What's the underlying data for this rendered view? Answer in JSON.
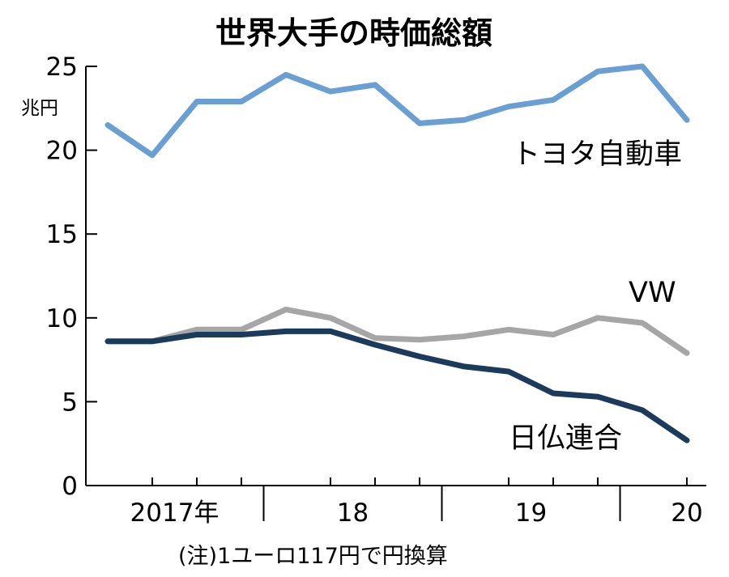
{
  "chart_data": {
    "type": "line",
    "title": "世界大手の時価総額",
    "unit_label": "兆円",
    "note": "(注)1ユーロ117円で円換算",
    "ylim": [
      0,
      25
    ],
    "yticks": [
      0,
      5,
      10,
      15,
      20,
      25
    ],
    "x_periods": 14,
    "x_tick_labels": [
      {
        "label": "2017年",
        "center": 1.5
      },
      {
        "label": "18",
        "center": 5.5
      },
      {
        "label": "19",
        "center": 9.5
      },
      {
        "label": "20",
        "center": 13
      }
    ],
    "x_minor_ticks": [
      1,
      2,
      3,
      5,
      6,
      7,
      9,
      10,
      11,
      13
    ],
    "x_major_ticks": [
      3.5,
      7.5,
      11.5
    ],
    "grid": false,
    "series": [
      {
        "name": "トヨタ自動車",
        "color": "#6a9fd4",
        "values": [
          21.5,
          19.7,
          22.9,
          22.9,
          24.5,
          23.5,
          23.9,
          21.6,
          21.8,
          22.6,
          23.0,
          24.7,
          25.0,
          21.8
        ]
      },
      {
        "name": "VW",
        "color": "#a6a6a6",
        "values": [
          8.6,
          8.6,
          9.3,
          9.3,
          10.5,
          10.0,
          8.8,
          8.7,
          8.9,
          9.3,
          9.0,
          10.0,
          9.7,
          7.9
        ]
      },
      {
        "name": "日仏連合",
        "color": "#1b3a5c",
        "values": [
          8.6,
          8.6,
          9.0,
          9.0,
          9.2,
          9.2,
          8.4,
          7.7,
          7.1,
          6.8,
          5.5,
          5.3,
          4.5,
          2.7
        ]
      }
    ]
  }
}
